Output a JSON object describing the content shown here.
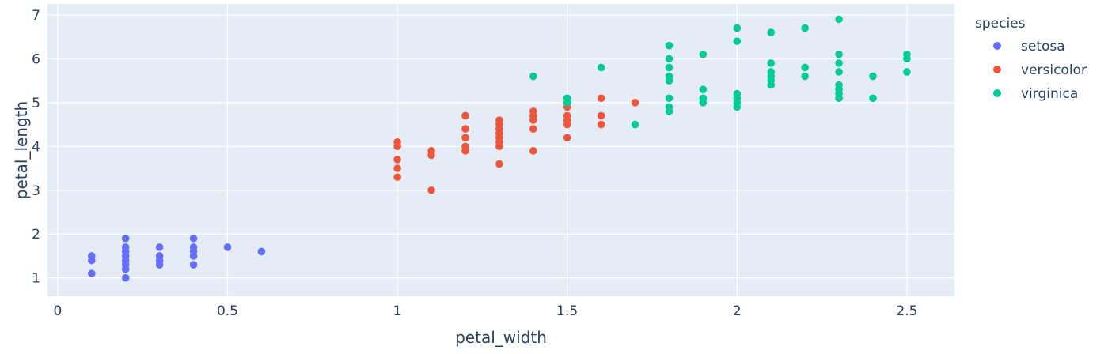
{
  "chart_data": {
    "type": "scatter",
    "title": "",
    "xlabel": "petal_width",
    "ylabel": "petal_length",
    "xlim": [
      -0.03,
      2.64
    ],
    "ylim": [
      0.58,
      7.25
    ],
    "x_ticks": [
      0,
      0.5,
      1,
      1.5,
      2,
      2.5
    ],
    "x_tick_labels": [
      "0",
      "0.5",
      "1",
      "1.5",
      "2",
      "2.5"
    ],
    "y_ticks": [
      1,
      2,
      3,
      4,
      5,
      6,
      7
    ],
    "y_tick_labels": [
      "1",
      "2",
      "3",
      "4",
      "5",
      "6",
      "7"
    ],
    "grid": true,
    "legend_title": "species",
    "legend_position": "right",
    "plot_bg": "#e5ecf6",
    "series": [
      {
        "name": "setosa",
        "color": "#636efa",
        "points": [
          [
            0.1,
            1.1
          ],
          [
            0.1,
            1.4
          ],
          [
            0.1,
            1.5
          ],
          [
            0.2,
            1.0
          ],
          [
            0.2,
            1.2
          ],
          [
            0.2,
            1.3
          ],
          [
            0.2,
            1.4
          ],
          [
            0.2,
            1.5
          ],
          [
            0.2,
            1.6
          ],
          [
            0.2,
            1.7
          ],
          [
            0.2,
            1.9
          ],
          [
            0.3,
            1.3
          ],
          [
            0.3,
            1.4
          ],
          [
            0.3,
            1.5
          ],
          [
            0.3,
            1.7
          ],
          [
            0.4,
            1.3
          ],
          [
            0.4,
            1.5
          ],
          [
            0.4,
            1.6
          ],
          [
            0.4,
            1.7
          ],
          [
            0.4,
            1.9
          ],
          [
            0.5,
            1.7
          ],
          [
            0.6,
            1.6
          ]
        ]
      },
      {
        "name": "versicolor",
        "color": "#ef553b",
        "points": [
          [
            1.0,
            3.3
          ],
          [
            1.0,
            3.5
          ],
          [
            1.0,
            3.7
          ],
          [
            1.0,
            4.0
          ],
          [
            1.0,
            4.1
          ],
          [
            1.1,
            3.0
          ],
          [
            1.1,
            3.8
          ],
          [
            1.1,
            3.9
          ],
          [
            1.2,
            3.9
          ],
          [
            1.2,
            4.0
          ],
          [
            1.2,
            4.2
          ],
          [
            1.2,
            4.4
          ],
          [
            1.2,
            4.7
          ],
          [
            1.3,
            3.6
          ],
          [
            1.3,
            4.0
          ],
          [
            1.3,
            4.1
          ],
          [
            1.3,
            4.2
          ],
          [
            1.3,
            4.3
          ],
          [
            1.3,
            4.4
          ],
          [
            1.3,
            4.5
          ],
          [
            1.3,
            4.6
          ],
          [
            1.4,
            3.9
          ],
          [
            1.4,
            4.4
          ],
          [
            1.4,
            4.6
          ],
          [
            1.4,
            4.7
          ],
          [
            1.4,
            4.8
          ],
          [
            1.5,
            4.2
          ],
          [
            1.5,
            4.5
          ],
          [
            1.5,
            4.6
          ],
          [
            1.5,
            4.7
          ],
          [
            1.5,
            4.9
          ],
          [
            1.6,
            4.5
          ],
          [
            1.6,
            4.7
          ],
          [
            1.6,
            5.1
          ],
          [
            1.7,
            5.0
          ]
        ]
      },
      {
        "name": "virginica",
        "color": "#00cc96",
        "points": [
          [
            1.4,
            5.6
          ],
          [
            1.5,
            5.0
          ],
          [
            1.5,
            5.1
          ],
          [
            1.6,
            5.8
          ],
          [
            1.7,
            4.5
          ],
          [
            1.8,
            4.8
          ],
          [
            1.8,
            4.9
          ],
          [
            1.8,
            5.1
          ],
          [
            1.8,
            5.5
          ],
          [
            1.8,
            5.6
          ],
          [
            1.8,
            5.8
          ],
          [
            1.8,
            6.0
          ],
          [
            1.8,
            6.3
          ],
          [
            1.9,
            5.0
          ],
          [
            1.9,
            5.1
          ],
          [
            1.9,
            5.3
          ],
          [
            1.9,
            6.1
          ],
          [
            2.0,
            4.9
          ],
          [
            2.0,
            5.0
          ],
          [
            2.0,
            5.1
          ],
          [
            2.0,
            5.2
          ],
          [
            2.0,
            6.4
          ],
          [
            2.0,
            6.7
          ],
          [
            2.1,
            5.4
          ],
          [
            2.1,
            5.5
          ],
          [
            2.1,
            5.6
          ],
          [
            2.1,
            5.7
          ],
          [
            2.1,
            5.9
          ],
          [
            2.1,
            6.6
          ],
          [
            2.2,
            5.6
          ],
          [
            2.2,
            5.8
          ],
          [
            2.2,
            6.7
          ],
          [
            2.3,
            5.1
          ],
          [
            2.3,
            5.2
          ],
          [
            2.3,
            5.3
          ],
          [
            2.3,
            5.4
          ],
          [
            2.3,
            5.7
          ],
          [
            2.3,
            5.9
          ],
          [
            2.3,
            6.1
          ],
          [
            2.3,
            6.9
          ],
          [
            2.4,
            5.1
          ],
          [
            2.4,
            5.6
          ],
          [
            2.5,
            5.7
          ],
          [
            2.5,
            6.0
          ],
          [
            2.5,
            6.1
          ]
        ]
      }
    ]
  }
}
